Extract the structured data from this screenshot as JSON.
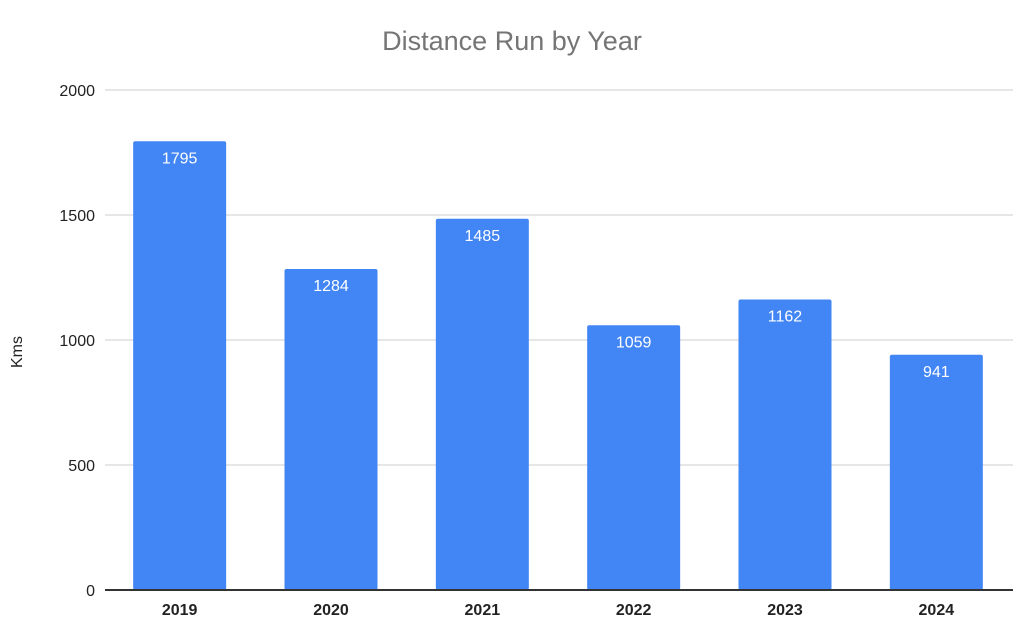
{
  "chart_data": {
    "type": "bar",
    "title": "Distance Run by Year",
    "xlabel": "",
    "ylabel": "Kms",
    "categories": [
      "2019",
      "2020",
      "2021",
      "2022",
      "2023",
      "2024"
    ],
    "values": [
      1795,
      1284,
      1485,
      1059,
      1162,
      941
    ],
    "data_labels": [
      "1795",
      "1284",
      "1485",
      "1059",
      "1162",
      "941"
    ],
    "yticks": [
      0,
      500,
      1000,
      1500,
      2000
    ],
    "ytick_labels": [
      "0",
      "500",
      "1000",
      "1500",
      "2000"
    ],
    "ylim": [
      0,
      2000
    ],
    "grid": true,
    "legend": "none",
    "colors": {
      "bar": "#4285f4",
      "title": "#757575",
      "grid": "#e6e6e6",
      "axis": "#333333",
      "label": "#222222",
      "data_label": "#ffffff"
    }
  }
}
